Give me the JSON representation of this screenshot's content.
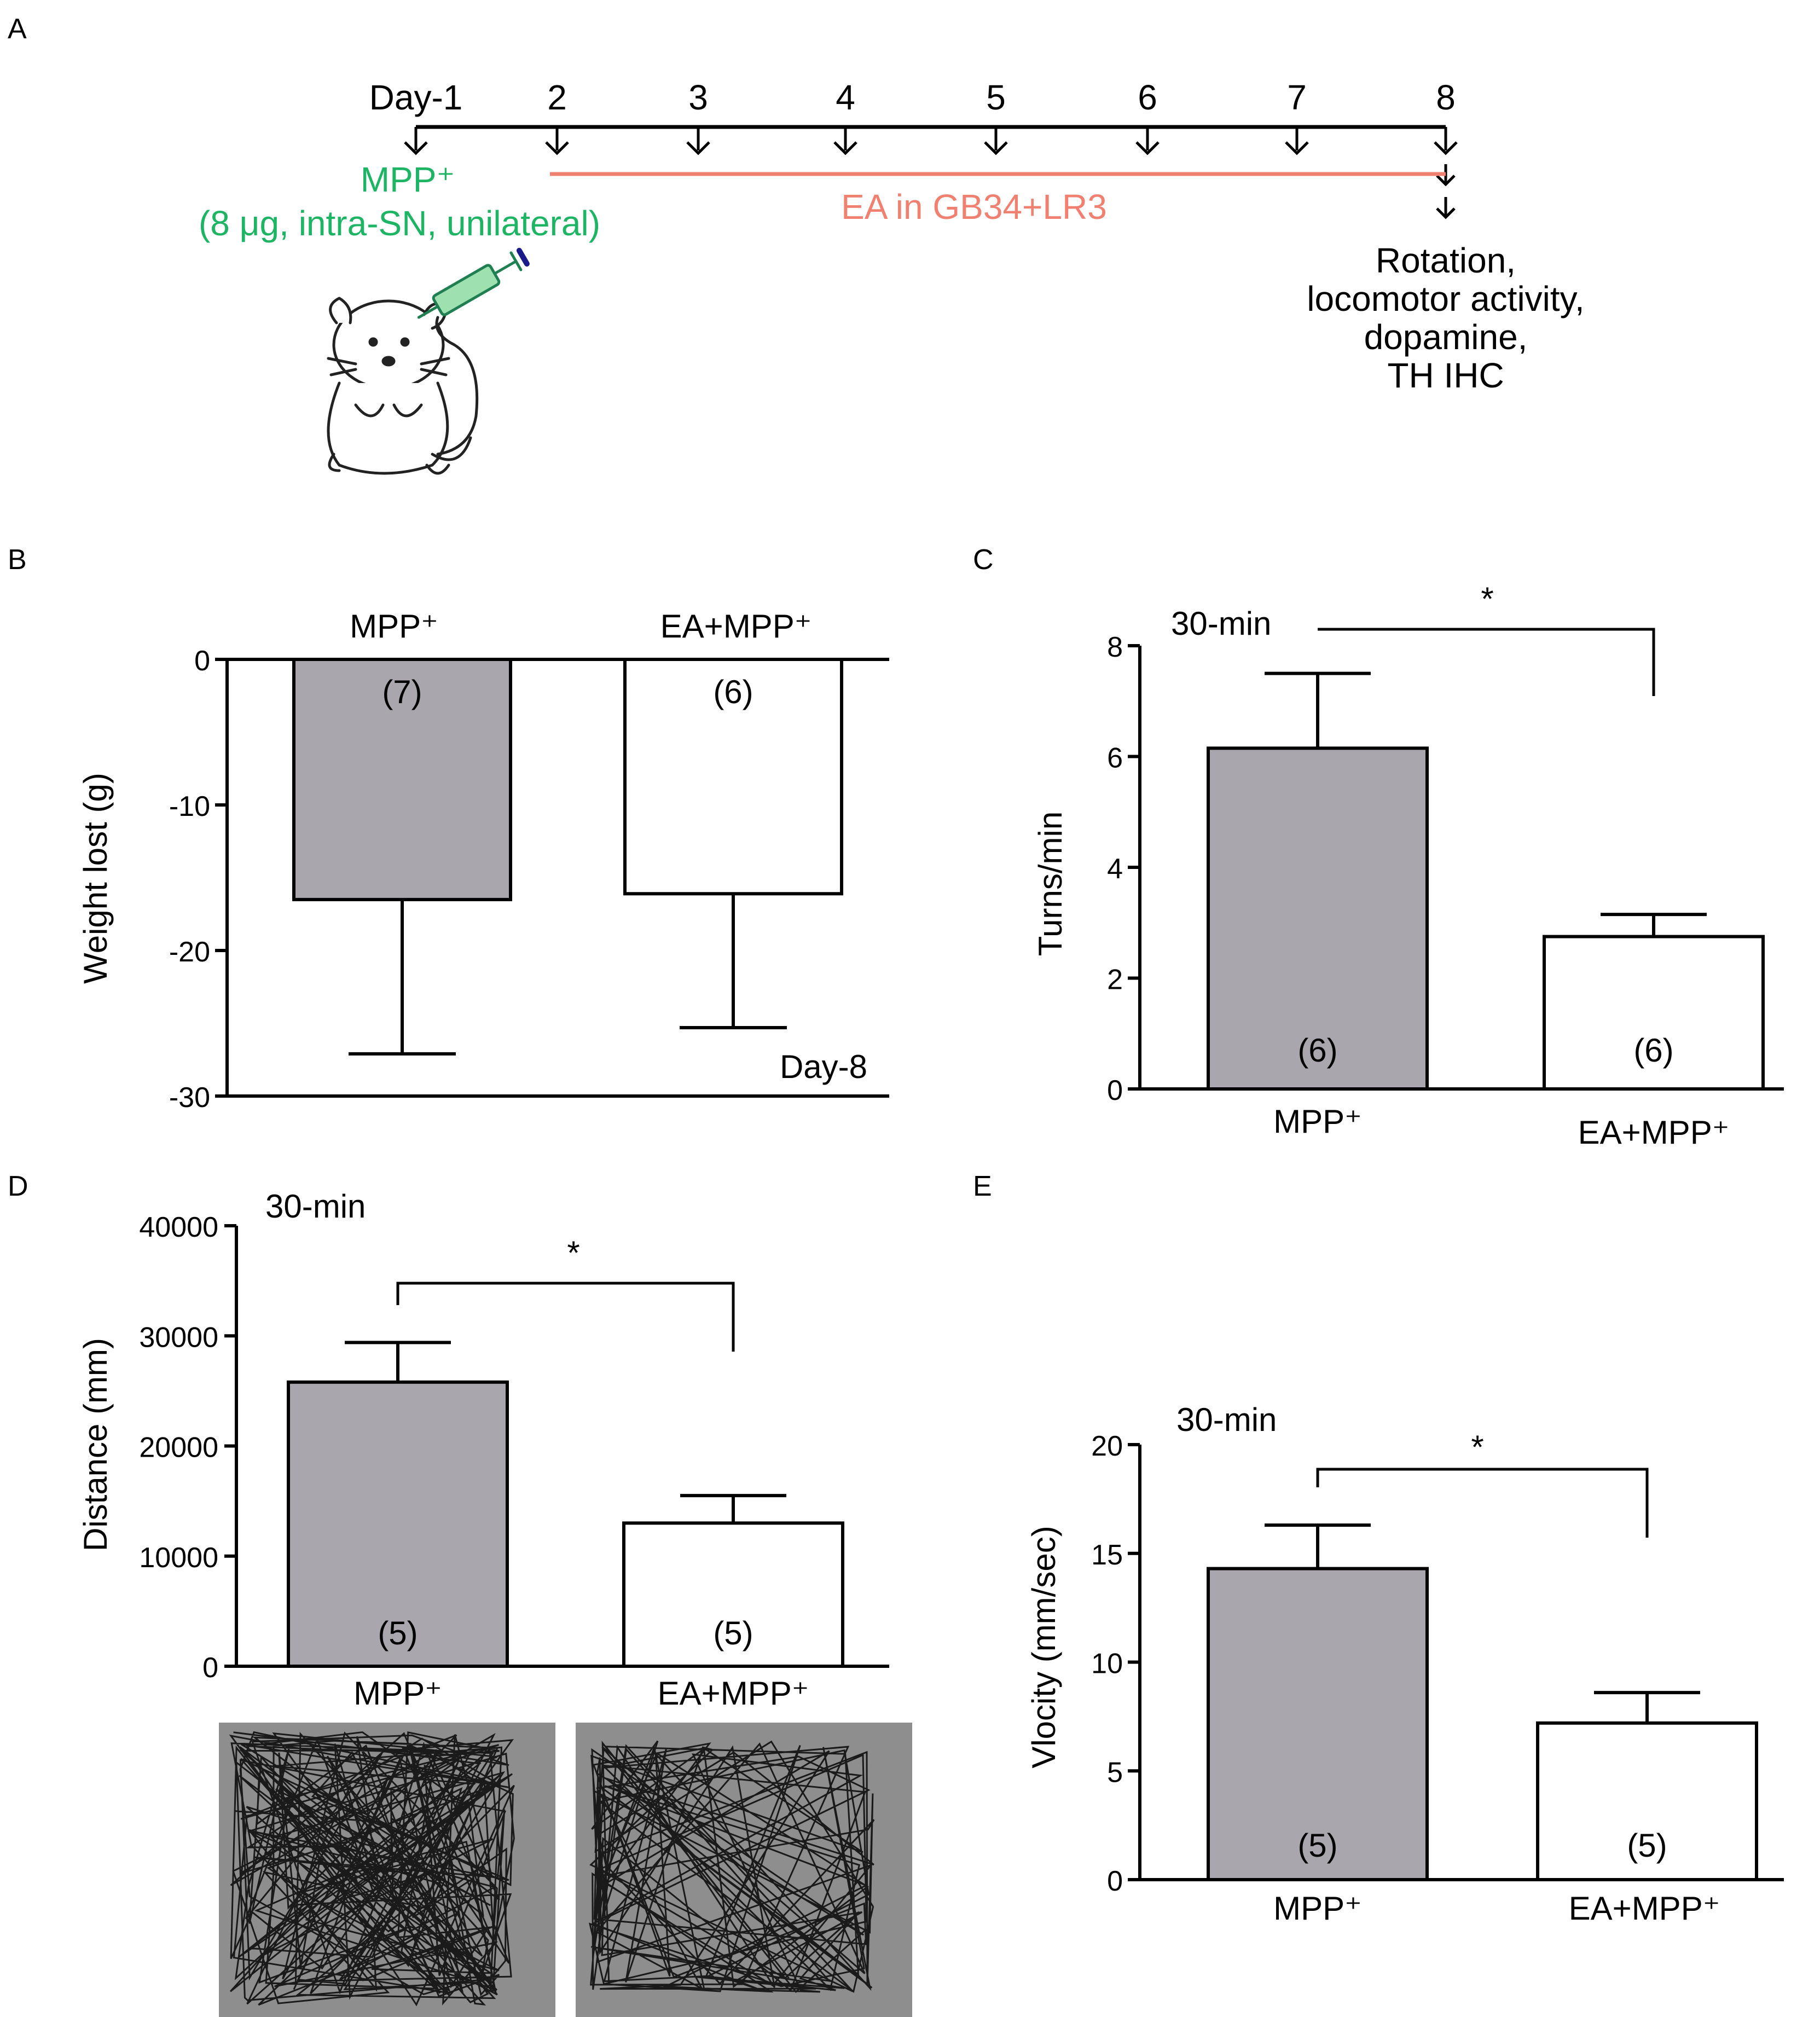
{
  "panel_letters": [
    "A",
    "B",
    "C",
    "D",
    "E"
  ],
  "timeline": {
    "day_labels": [
      "Day-1",
      "2",
      "3",
      "4",
      "5",
      "6",
      "7",
      "8"
    ],
    "mpp_line1": "MPP⁺",
    "mpp_line2": "(8 μg, intra-SN, unilateral)",
    "ea_label": "EA in GB34+LR3",
    "outcome_lines": [
      "Rotation,",
      "locomotor activity,",
      "dopamine,",
      "TH IHC"
    ],
    "colors": {
      "mpp": "#1db464",
      "ea": "#f08070",
      "axis": "#000000"
    },
    "icon": "mouse-injection-icon"
  },
  "colors": {
    "grey_bar": "#a9a6ad",
    "white_bar": "#ffffff",
    "track_bg": "#8e8e8e",
    "track_line": "#1a1a1a"
  },
  "chart_data": [
    {
      "panel": "B",
      "type": "bar",
      "categories": [
        "MPP⁺",
        "EA+MPP⁺"
      ],
      "values": [
        -16.5,
        -16.1
      ],
      "errors": [
        10.6,
        9.2
      ],
      "n_labels": [
        "(7)",
        "(6)"
      ],
      "ylabel": "Weight lost (g)",
      "ylim": [
        -30,
        0
      ],
      "yticks": [
        0,
        -10,
        -20,
        -30
      ],
      "ytick_labels": [
        "0",
        "-10",
        "-20",
        "-30"
      ],
      "annotation": "Day-8"
    },
    {
      "panel": "C",
      "type": "bar",
      "categories": [
        "MPP⁺",
        "EA+MPP⁺"
      ],
      "values": [
        6.15,
        2.75
      ],
      "errors": [
        1.35,
        0.4
      ],
      "n_labels": [
        "(6)",
        "(6)"
      ],
      "ylabel": "Turns/min",
      "ylim": [
        0,
        8
      ],
      "yticks": [
        0,
        2,
        4,
        6,
        8
      ],
      "ytick_labels": [
        "0",
        "2",
        "4",
        "6",
        "8"
      ],
      "time_label": "30-min",
      "significance": "*"
    },
    {
      "panel": "D",
      "type": "bar",
      "categories": [
        "MPP⁺",
        "EA+MPP⁺"
      ],
      "values": [
        25800,
        13000
      ],
      "errors": [
        3600,
        2500
      ],
      "n_labels": [
        "(5)",
        "(5)"
      ],
      "ylabel": "Distance (mm)",
      "ylim": [
        0,
        40000
      ],
      "yticks": [
        0,
        10000,
        20000,
        30000,
        40000
      ],
      "ytick_labels": [
        "0",
        "10000",
        "20000",
        "30000",
        "40000"
      ],
      "time_label": "30-min",
      "significance": "*"
    },
    {
      "panel": "E",
      "type": "bar",
      "categories": [
        "MPP⁺",
        "EA+MPP⁺"
      ],
      "values": [
        14.3,
        7.2
      ],
      "errors": [
        2.0,
        1.4
      ],
      "n_labels": [
        "(5)",
        "(5)"
      ],
      "ylabel": "Vlocity (mm/sec)",
      "ylim": [
        0,
        20
      ],
      "yticks": [
        0,
        5,
        10,
        15,
        20
      ],
      "ytick_labels": [
        "0",
        "5",
        "10",
        "15",
        "20"
      ],
      "time_label": "30-min",
      "significance": "*"
    }
  ]
}
